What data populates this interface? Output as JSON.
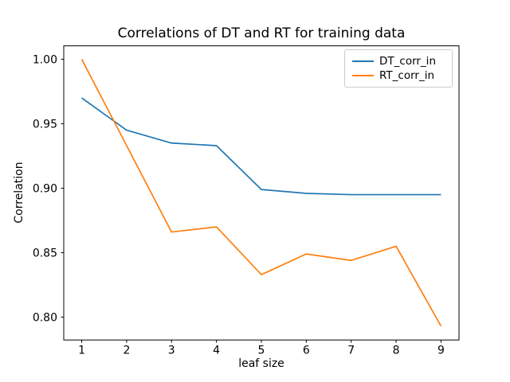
{
  "window": {
    "background_color": "#ffffff"
  },
  "chart_data": {
    "type": "line",
    "title": "Correlations of DT and RT for training data",
    "xlabel": "leaf size",
    "ylabel": "Correlation",
    "x": [
      1,
      2,
      3,
      4,
      5,
      6,
      7,
      8,
      9
    ],
    "series": [
      {
        "name": "DT_corr_in",
        "color": "#1f77b4",
        "values": [
          0.97,
          0.945,
          0.935,
          0.933,
          0.899,
          0.896,
          0.895,
          0.895,
          0.895
        ]
      },
      {
        "name": "RT_corr_in",
        "color": "#ff7f0e",
        "values": [
          1.0,
          0.933,
          0.866,
          0.87,
          0.833,
          0.849,
          0.844,
          0.855,
          0.793
        ]
      }
    ],
    "xtick_labels": [
      "1",
      "2",
      "3",
      "4",
      "5",
      "6",
      "7",
      "8",
      "9"
    ],
    "ytick_labels": [
      "0.80",
      "0.85",
      "0.90",
      "0.95",
      "1.00"
    ],
    "xlim": [
      0.6,
      9.4
    ],
    "ylim": [
      0.7823,
      1.0104
    ],
    "grid": false,
    "legend_position": "upper right",
    "axis_color": "#000000",
    "legend_border_color": "#cccccc"
  }
}
